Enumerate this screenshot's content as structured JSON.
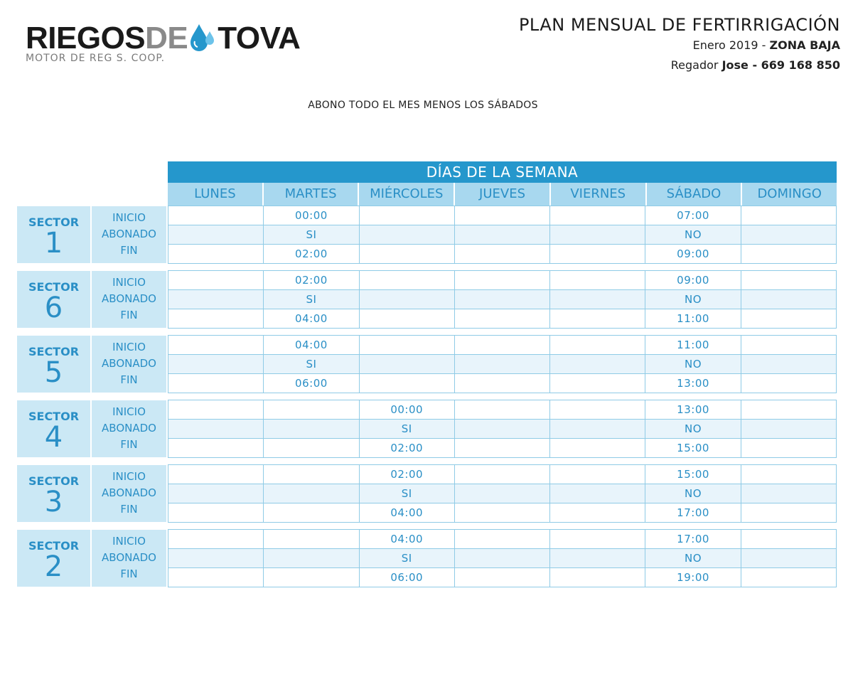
{
  "logo": {
    "word1": "RIEGOS",
    "word2": "DE",
    "word3": "TOVA",
    "subtitle": "MOTOR DE REG S. COOP."
  },
  "header": {
    "title": "PLAN MENSUAL DE FERTIRRIGACIÓN",
    "period": "Enero 2019",
    "separator": " - ",
    "zone": "ZONA BAJA",
    "irrigator_label": "Regador",
    "irrigator": "Jose - 669 168 850"
  },
  "note": "ABONO TODO EL MES MENOS LOS SÁBADOS",
  "week_header": "DÍAS DE LA SEMANA",
  "days": [
    "LUNES",
    "MARTES",
    "MIÉRCOLES",
    "JUEVES",
    "VIERNES",
    "SÁBADO",
    "DOMINGO"
  ],
  "sector_word": "SECTOR",
  "row_labels": [
    "INICIO",
    "ABONADO",
    "FIN"
  ],
  "sectors": [
    {
      "number": "1",
      "rows": [
        [
          "",
          "00:00",
          "",
          "",
          "",
          "07:00",
          ""
        ],
        [
          "",
          "SI",
          "",
          "",
          "",
          "NO",
          ""
        ],
        [
          "",
          "02:00",
          "",
          "",
          "",
          "09:00",
          ""
        ]
      ]
    },
    {
      "number": "6",
      "rows": [
        [
          "",
          "02:00",
          "",
          "",
          "",
          "09:00",
          ""
        ],
        [
          "",
          "SI",
          "",
          "",
          "",
          "NO",
          ""
        ],
        [
          "",
          "04:00",
          "",
          "",
          "",
          "11:00",
          ""
        ]
      ]
    },
    {
      "number": "5",
      "rows": [
        [
          "",
          "04:00",
          "",
          "",
          "",
          "11:00",
          ""
        ],
        [
          "",
          "SI",
          "",
          "",
          "",
          "NO",
          ""
        ],
        [
          "",
          "06:00",
          "",
          "",
          "",
          "13:00",
          ""
        ]
      ]
    },
    {
      "number": "4",
      "rows": [
        [
          "",
          "",
          "00:00",
          "",
          "",
          "13:00",
          ""
        ],
        [
          "",
          "",
          "SI",
          "",
          "",
          "NO",
          ""
        ],
        [
          "",
          "",
          "02:00",
          "",
          "",
          "15:00",
          ""
        ]
      ]
    },
    {
      "number": "3",
      "rows": [
        [
          "",
          "",
          "02:00",
          "",
          "",
          "15:00",
          ""
        ],
        [
          "",
          "",
          "SI",
          "",
          "",
          "NO",
          ""
        ],
        [
          "",
          "",
          "04:00",
          "",
          "",
          "17:00",
          ""
        ]
      ]
    },
    {
      "number": "2",
      "rows": [
        [
          "",
          "",
          "04:00",
          "",
          "",
          "17:00",
          ""
        ],
        [
          "",
          "",
          "SI",
          "",
          "",
          "NO",
          ""
        ],
        [
          "",
          "",
          "06:00",
          "",
          "",
          "19:00",
          ""
        ]
      ]
    }
  ],
  "colors": {
    "accent": "#2597cc",
    "day_header_bg": "#a8d8ef",
    "label_bg": "#cbe8f5",
    "text_blue": "#2a8fc6",
    "row_tint": "#e8f4fb"
  }
}
